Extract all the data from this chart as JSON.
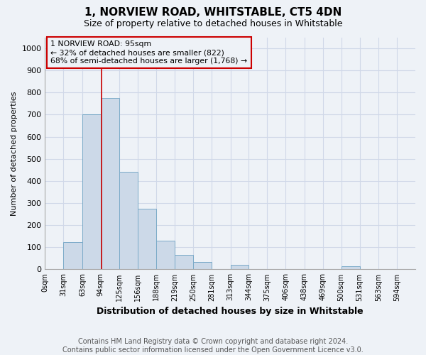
{
  "title": "1, NORVIEW ROAD, WHITSTABLE, CT5 4DN",
  "subtitle": "Size of property relative to detached houses in Whitstable",
  "xlabel": "Distribution of detached houses by size in Whitstable",
  "ylabel": "Number of detached properties",
  "footnote1": "Contains HM Land Registry data © Crown copyright and database right 2024.",
  "footnote2": "Contains public sector information licensed under the Open Government Licence v3.0.",
  "annotation_line1": "1 NORVIEW ROAD: 95sqm",
  "annotation_line2": "← 32% of detached houses are smaller (822)",
  "annotation_line3": "68% of semi-detached houses are larger (1,768) →",
  "bar_color": "#ccd9e8",
  "bar_edge_color": "#7aaac8",
  "grid_color": "#d0d8e8",
  "annotation_line_color": "#cc0000",
  "annotation_box_edge_color": "#cc0000",
  "marker_line_x": 95,
  "bin_edges": [
    0,
    31,
    63,
    94,
    125,
    156,
    188,
    219,
    250,
    281,
    313,
    344,
    375,
    406,
    438,
    469,
    500,
    531,
    563,
    594,
    625
  ],
  "bar_heights": [
    0,
    125,
    700,
    775,
    440,
    275,
    130,
    65,
    35,
    0,
    20,
    0,
    0,
    0,
    0,
    0,
    15,
    0,
    0,
    0,
    0
  ],
  "ylim": [
    0,
    1050
  ],
  "xlim": [
    0,
    625
  ],
  "ytick_interval": 100,
  "background_color": "#eef2f7",
  "title_fontsize": 11,
  "subtitle_fontsize": 9,
  "ylabel_fontsize": 8,
  "xlabel_fontsize": 9,
  "footnote_fontsize": 7,
  "tick_fontsize": 8,
  "xtick_fontsize": 7
}
